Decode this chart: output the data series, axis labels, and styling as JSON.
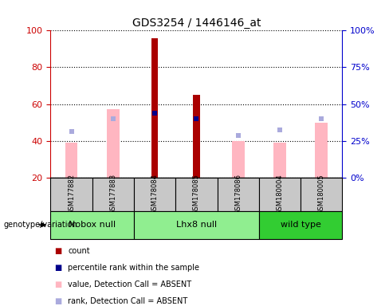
{
  "title": "GDS3254 / 1446146_at",
  "samples": [
    "GSM177882",
    "GSM177883",
    "GSM178084",
    "GSM178085",
    "GSM178086",
    "GSM180004",
    "GSM180005"
  ],
  "groups": [
    {
      "label": "Nobox null",
      "indices": [
        0,
        1
      ],
      "color": "#90EE90"
    },
    {
      "label": "Lhx8 null",
      "indices": [
        2,
        3,
        4
      ],
      "color": "#90EE90"
    },
    {
      "label": "wild type",
      "indices": [
        5,
        6
      ],
      "color": "#32CD32"
    }
  ],
  "count_values": [
    0,
    0,
    96,
    65,
    0,
    0,
    0
  ],
  "percentile_rank_values": [
    0,
    0,
    55,
    52,
    0,
    0,
    0
  ],
  "value_absent": [
    39,
    57,
    0,
    0,
    40,
    39,
    50
  ],
  "rank_absent": [
    45,
    52,
    0,
    0,
    43,
    46,
    52
  ],
  "ylim": [
    20,
    100
  ],
  "yticks_left": [
    20,
    40,
    60,
    80,
    100
  ],
  "yticks_right": [
    0,
    25,
    50,
    75,
    100
  ],
  "bar_width": 0.3,
  "count_color": "#AA0000",
  "percentile_color": "#00008B",
  "value_absent_color": "#FFB6C1",
  "rank_absent_color": "#AAAADD",
  "background_plot": "#FFFFFF",
  "background_sample": "#C8C8C8",
  "title_color": "#000000",
  "left_axis_color": "#CC0000",
  "right_axis_color": "#0000CC",
  "legend_items": [
    {
      "color": "#AA0000",
      "label": "count"
    },
    {
      "color": "#00008B",
      "label": "percentile rank within the sample"
    },
    {
      "color": "#FFB6C1",
      "label": "value, Detection Call = ABSENT"
    },
    {
      "color": "#AAAADD",
      "label": "rank, Detection Call = ABSENT"
    }
  ]
}
